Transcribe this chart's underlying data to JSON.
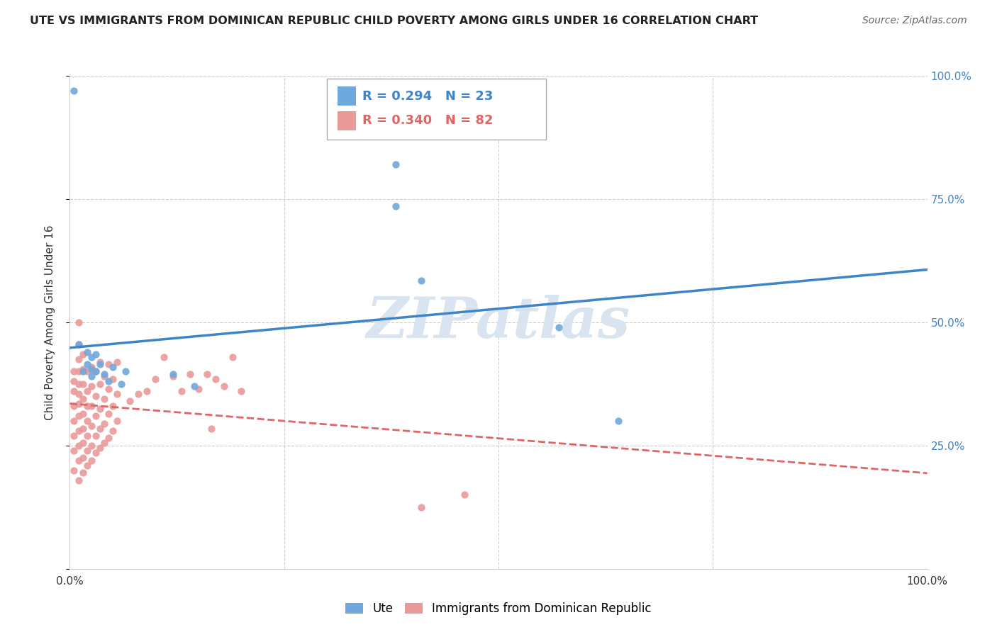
{
  "title": "UTE VS IMMIGRANTS FROM DOMINICAN REPUBLIC CHILD POVERTY AMONG GIRLS UNDER 16 CORRELATION CHART",
  "source": "Source: ZipAtlas.com",
  "ylabel": "Child Poverty Among Girls Under 16",
  "blue_color": "#6fa8dc",
  "pink_color": "#ea9999",
  "blue_line_color": "#3d85c8",
  "pink_line_color": "#e06666",
  "watermark": "ZIPatlas",
  "ute_points": [
    [
      0.005,
      0.97
    ],
    [
      0.01,
      0.455
    ],
    [
      0.015,
      0.4
    ],
    [
      0.02,
      0.44
    ],
    [
      0.02,
      0.415
    ],
    [
      0.025,
      0.43
    ],
    [
      0.025,
      0.405
    ],
    [
      0.025,
      0.39
    ],
    [
      0.03,
      0.435
    ],
    [
      0.03,
      0.4
    ],
    [
      0.035,
      0.415
    ],
    [
      0.04,
      0.395
    ],
    [
      0.045,
      0.38
    ],
    [
      0.05,
      0.41
    ],
    [
      0.06,
      0.375
    ],
    [
      0.065,
      0.4
    ],
    [
      0.12,
      0.395
    ],
    [
      0.145,
      0.37
    ],
    [
      0.38,
      0.82
    ],
    [
      0.38,
      0.735
    ],
    [
      0.41,
      0.585
    ],
    [
      0.57,
      0.49
    ],
    [
      0.64,
      0.3
    ]
  ],
  "dr_points": [
    [
      0.005,
      0.2
    ],
    [
      0.005,
      0.24
    ],
    [
      0.005,
      0.27
    ],
    [
      0.005,
      0.3
    ],
    [
      0.005,
      0.33
    ],
    [
      0.005,
      0.36
    ],
    [
      0.005,
      0.38
    ],
    [
      0.005,
      0.4
    ],
    [
      0.01,
      0.18
    ],
    [
      0.01,
      0.22
    ],
    [
      0.01,
      0.25
    ],
    [
      0.01,
      0.28
    ],
    [
      0.01,
      0.31
    ],
    [
      0.01,
      0.335
    ],
    [
      0.01,
      0.355
    ],
    [
      0.01,
      0.375
    ],
    [
      0.01,
      0.4
    ],
    [
      0.01,
      0.425
    ],
    [
      0.01,
      0.455
    ],
    [
      0.01,
      0.5
    ],
    [
      0.015,
      0.195
    ],
    [
      0.015,
      0.225
    ],
    [
      0.015,
      0.255
    ],
    [
      0.015,
      0.285
    ],
    [
      0.015,
      0.315
    ],
    [
      0.015,
      0.345
    ],
    [
      0.015,
      0.375
    ],
    [
      0.015,
      0.405
    ],
    [
      0.015,
      0.435
    ],
    [
      0.02,
      0.21
    ],
    [
      0.02,
      0.24
    ],
    [
      0.02,
      0.27
    ],
    [
      0.02,
      0.3
    ],
    [
      0.02,
      0.33
    ],
    [
      0.02,
      0.36
    ],
    [
      0.02,
      0.4
    ],
    [
      0.025,
      0.22
    ],
    [
      0.025,
      0.25
    ],
    [
      0.025,
      0.29
    ],
    [
      0.025,
      0.33
    ],
    [
      0.025,
      0.37
    ],
    [
      0.025,
      0.41
    ],
    [
      0.03,
      0.235
    ],
    [
      0.03,
      0.27
    ],
    [
      0.03,
      0.31
    ],
    [
      0.03,
      0.35
    ],
    [
      0.03,
      0.4
    ],
    [
      0.035,
      0.245
    ],
    [
      0.035,
      0.285
    ],
    [
      0.035,
      0.325
    ],
    [
      0.035,
      0.375
    ],
    [
      0.035,
      0.42
    ],
    [
      0.04,
      0.255
    ],
    [
      0.04,
      0.295
    ],
    [
      0.04,
      0.345
    ],
    [
      0.04,
      0.39
    ],
    [
      0.045,
      0.265
    ],
    [
      0.045,
      0.315
    ],
    [
      0.045,
      0.365
    ],
    [
      0.045,
      0.415
    ],
    [
      0.05,
      0.28
    ],
    [
      0.05,
      0.33
    ],
    [
      0.05,
      0.385
    ],
    [
      0.055,
      0.3
    ],
    [
      0.055,
      0.355
    ],
    [
      0.055,
      0.42
    ],
    [
      0.07,
      0.34
    ],
    [
      0.08,
      0.355
    ],
    [
      0.09,
      0.36
    ],
    [
      0.1,
      0.385
    ],
    [
      0.11,
      0.43
    ],
    [
      0.12,
      0.39
    ],
    [
      0.13,
      0.36
    ],
    [
      0.14,
      0.395
    ],
    [
      0.15,
      0.365
    ],
    [
      0.16,
      0.395
    ],
    [
      0.17,
      0.385
    ],
    [
      0.18,
      0.37
    ],
    [
      0.165,
      0.285
    ],
    [
      0.19,
      0.43
    ],
    [
      0.2,
      0.36
    ],
    [
      0.41,
      0.125
    ],
    [
      0.46,
      0.15
    ]
  ]
}
